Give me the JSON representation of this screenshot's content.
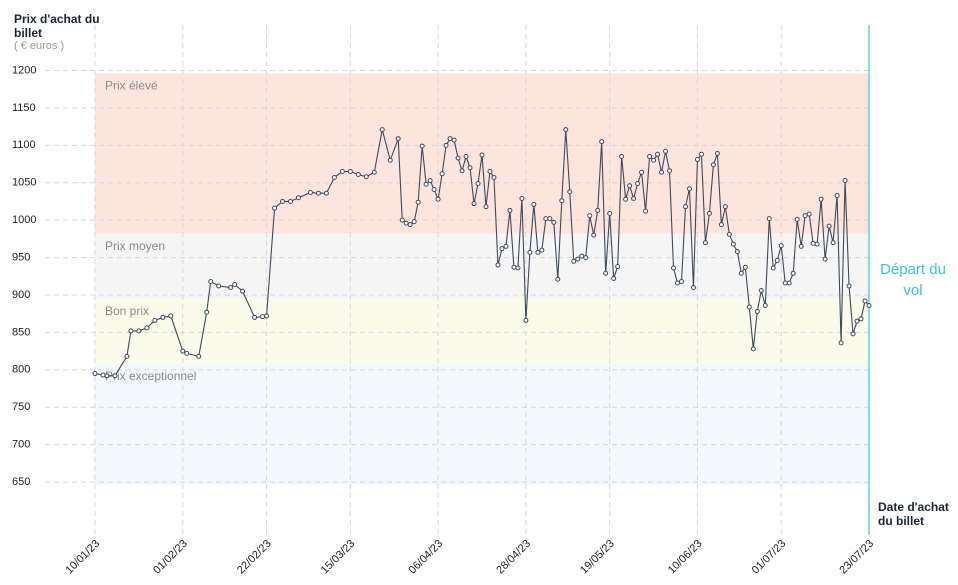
{
  "chart_data": {
    "type": "line",
    "y_title": "Prix d'achat du billet",
    "y_unit": "( € euros )",
    "x_title": "Date d'achat du billet",
    "ylim": [
      610,
      1210
    ],
    "yticks": [
      650,
      700,
      750,
      800,
      850,
      900,
      950,
      1000,
      1050,
      1100,
      1150,
      1200
    ],
    "xlim": [
      0,
      194
    ],
    "xticks": [
      {
        "value": 0,
        "label": "10/01/23"
      },
      {
        "value": 22,
        "label": "01/02/23"
      },
      {
        "value": 43,
        "label": "22/02/23"
      },
      {
        "value": 64,
        "label": "15/03/23"
      },
      {
        "value": 86,
        "label": "06/04/23"
      },
      {
        "value": 108,
        "label": "28/04/23"
      },
      {
        "value": 129,
        "label": "19/05/23"
      },
      {
        "value": 151,
        "label": "10/06/23"
      },
      {
        "value": 172,
        "label": "01/07/23"
      },
      {
        "value": 194,
        "label": "23/07/23"
      }
    ],
    "grid": true,
    "bands": [
      {
        "label": "Prix élevé",
        "from": 982,
        "to": 1196,
        "color": "#fde4dd"
      },
      {
        "label": "Prix moyen",
        "from": 895,
        "to": 982,
        "color": "#f5f5f5"
      },
      {
        "label": "Bon prix",
        "from": 808,
        "to": 895,
        "color": "#fbfbeb"
      },
      {
        "label": "Prix exceptionnel",
        "from": 646,
        "to": 808,
        "color": "#f2f8fc"
      }
    ],
    "departure": {
      "label": "Départ du vol",
      "x": 194,
      "color": "#36c5d8"
    },
    "series": [
      {
        "color": "#3d4a5c",
        "x": [
          0,
          2,
          3,
          5,
          8,
          9,
          11,
          13,
          15,
          17,
          19,
          22,
          23,
          26,
          28,
          29,
          31,
          34,
          35,
          37,
          40,
          42,
          43,
          45,
          47,
          49,
          51,
          54,
          56,
          58,
          60,
          62,
          64,
          66,
          68,
          70,
          72,
          74,
          76,
          77,
          78,
          79,
          80,
          81,
          82,
          83,
          84,
          85,
          86,
          87,
          88,
          89,
          90,
          91,
          92,
          93,
          94,
          95,
          96,
          97,
          98,
          99,
          100,
          101,
          102,
          103,
          104,
          105,
          106,
          107,
          108,
          109,
          110,
          111,
          112,
          113,
          114,
          115,
          116,
          117,
          118,
          119,
          120,
          121,
          122,
          123,
          124,
          125,
          126,
          127,
          128,
          129,
          130,
          131,
          132,
          133,
          134,
          135,
          136,
          137,
          138,
          139,
          140,
          141,
          142,
          143,
          144,
          145,
          146,
          147,
          148,
          149,
          150,
          151,
          152,
          153,
          154,
          155,
          156,
          157,
          158,
          159,
          160,
          161,
          162,
          163,
          164,
          165,
          166,
          167,
          168,
          169,
          170,
          171,
          172,
          173,
          174,
          175,
          176,
          177,
          178,
          179,
          180,
          181,
          182,
          183,
          184,
          185,
          186,
          187,
          188,
          189,
          190,
          191,
          192,
          193,
          194
        ],
        "values": [
          795,
          793,
          792,
          792,
          818,
          852,
          852,
          856,
          866,
          870,
          872,
          825,
          822,
          818,
          877,
          918,
          912,
          910,
          914,
          905,
          870,
          871,
          872,
          1016,
          1025,
          1025,
          1030,
          1037,
          1036,
          1036,
          1057,
          1065,
          1065,
          1061,
          1058,
          1064,
          1121,
          1080,
          1109,
          1000,
          996,
          994,
          998,
          1024,
          1099,
          1048,
          1053,
          1041,
          1028,
          1062,
          1100,
          1109,
          1107,
          1083,
          1066,
          1085,
          1070,
          1022,
          1049,
          1087,
          1018,
          1065,
          1057,
          940,
          962,
          965,
          1013,
          937,
          936,
          1029,
          866,
          957,
          1021,
          957,
          960,
          1002,
          1002,
          997,
          921,
          1026,
          1121,
          1038,
          945,
          948,
          952,
          950,
          1006,
          980,
          1013,
          1105,
          929,
          1009,
          922,
          938,
          1085,
          1028,
          1046,
          1029,
          1049,
          1064,
          1012,
          1085,
          1080,
          1088,
          1064,
          1092,
          1066,
          936,
          916,
          918,
          1018,
          1042,
          910,
          1081,
          1088,
          970,
          1009,
          1074,
          1089,
          994,
          1018,
          981,
          968,
          958,
          929,
          937,
          884,
          828,
          878,
          906,
          886,
          1002,
          936,
          946,
          966,
          916,
          916,
          929,
          1001,
          965,
          1006,
          1008,
          969,
          968,
          1028,
          948,
          992,
          970,
          1033,
          836,
          1053,
          912,
          848,
          865,
          868,
          892,
          886
        ]
      }
    ]
  }
}
